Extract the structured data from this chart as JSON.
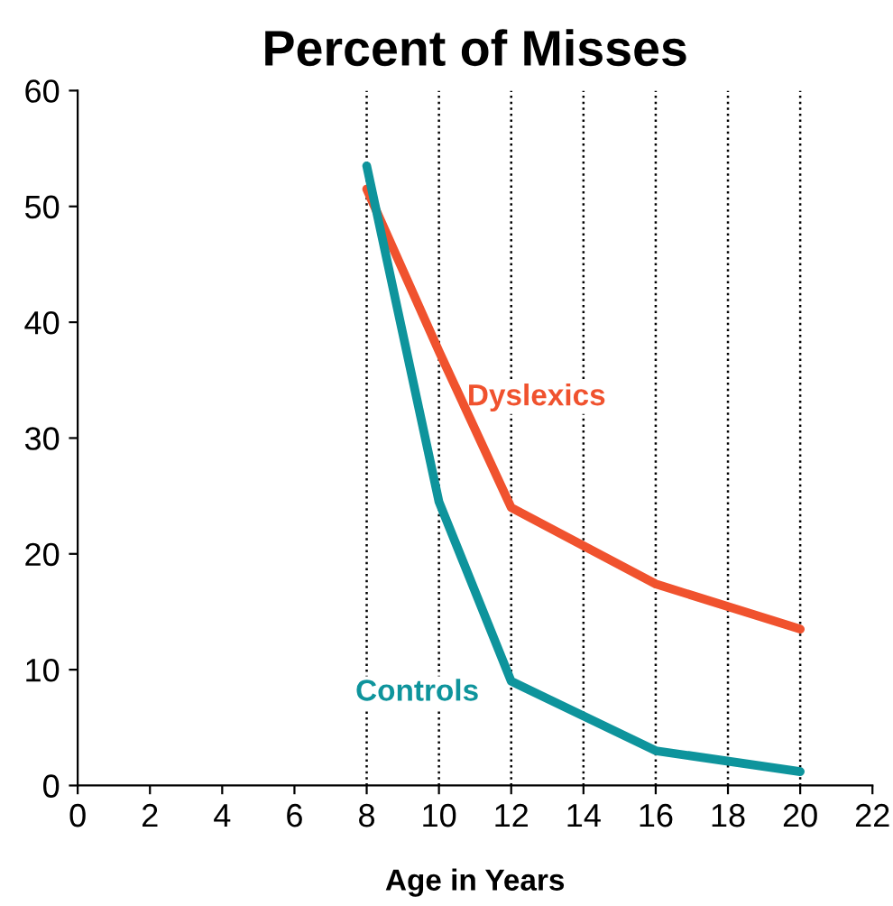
{
  "chart_data": {
    "type": "line",
    "title": "Percent of Misses",
    "xlabel": "Age in Years",
    "xlim": [
      0,
      22
    ],
    "xticks": [
      0,
      2,
      4,
      6,
      8,
      10,
      12,
      14,
      16,
      18,
      20,
      22
    ],
    "ylim": [
      0,
      60
    ],
    "yticks": [
      0,
      10,
      20,
      30,
      40,
      50,
      60
    ],
    "x": [
      8,
      10,
      12,
      16,
      20
    ],
    "series": [
      {
        "name": "Dyslexics",
        "color": "#f0522e",
        "values": [
          51.5,
          37.5,
          24,
          17.4,
          13.5
        ]
      },
      {
        "name": "Controls",
        "color": "#0e949c",
        "values": [
          53.5,
          24.5,
          9,
          3,
          1.2
        ]
      }
    ],
    "ref_lines": [
      {
        "axis": "x",
        "value": 8,
        "color": "#000000",
        "line_style": "dotted"
      },
      {
        "axis": "x",
        "value": 10,
        "color": "#000000",
        "line_style": "dotted"
      },
      {
        "axis": "x",
        "value": 12,
        "color": "#000000",
        "line_style": "dotted"
      },
      {
        "axis": "x",
        "value": 14,
        "color": "#000000",
        "line_style": "dotted"
      },
      {
        "axis": "x",
        "value": 16,
        "color": "#000000",
        "line_style": "dotted"
      },
      {
        "axis": "x",
        "value": 18,
        "color": "#000000",
        "line_style": "dotted"
      },
      {
        "axis": "x",
        "value": 20,
        "color": "#000000",
        "line_style": "dotted"
      }
    ],
    "grid": false,
    "legend": false,
    "marker": "none",
    "line_style": "solid"
  }
}
